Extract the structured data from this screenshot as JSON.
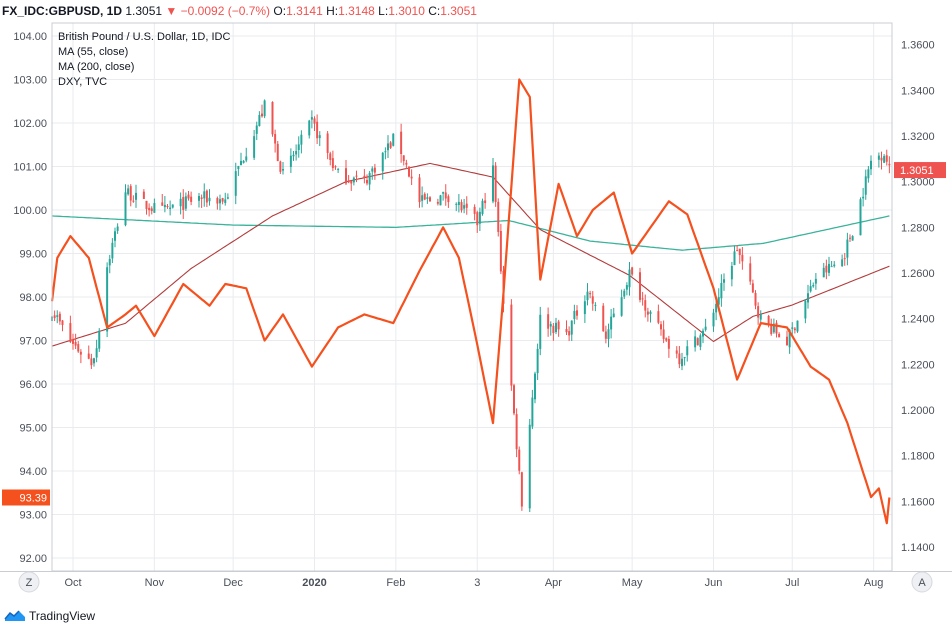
{
  "header": {
    "symbol": "FX_IDC:GBPUSD, 1D",
    "last": "1.3051",
    "arrow": "▼",
    "change": "−0.0092 (−0.7%)",
    "o_label": "O:",
    "o_value": "1.3141",
    "h_label": "H:",
    "h_value": "1.3148",
    "l_label": "L:",
    "l_value": "1.3010",
    "c_label": "C:",
    "c_value": "1.3051"
  },
  "legend": {
    "title": "British Pound / U.S. Dollar, 1D, IDC",
    "ma55": "MA (55, close)",
    "ma200": "MA (200, close)",
    "dxy": "DXY, TVC"
  },
  "footer": {
    "brand": "TradingView"
  },
  "colors": {
    "up": "#26a69a",
    "down": "#ef5350",
    "dxy": "#f4511e",
    "ma55": "#b23b3b",
    "ma200": "#3bb39b",
    "grid": "#e9ebef",
    "axis_text": "#4a4f5a"
  },
  "chart_data": {
    "type": "candlestick",
    "left_axis": {
      "label": "DXY",
      "ticks": [
        "104.00",
        "103.00",
        "102.00",
        "101.00",
        "100.00",
        "99.00",
        "98.00",
        "97.00",
        "96.00",
        "95.00",
        "94.00",
        "93.00",
        "92.00"
      ],
      "range": [
        91.7,
        104.3
      ]
    },
    "right_axis": {
      "label": "GBPUSD",
      "ticks": [
        "1.3600",
        "1.3400",
        "1.3200",
        "1.3000",
        "1.2800",
        "1.2600",
        "1.2400",
        "1.2200",
        "1.2000",
        "1.1800",
        "1.1600",
        "1.1400"
      ],
      "range": [
        1.1295,
        1.3695
      ]
    },
    "x_labels": [
      "Oct",
      "Nov",
      "Dec",
      "2020",
      "Feb",
      "3",
      "Apr",
      "May",
      "Jun",
      "Jul",
      "Aug"
    ],
    "x_dates": [
      "2019-10-01",
      "2019-11-01",
      "2019-12-01",
      "2020-01-01",
      "2020-02-01",
      "2020-03-03",
      "2020-04-01",
      "2020-05-01",
      "2020-06-01",
      "2020-07-01",
      "2020-08-01"
    ],
    "x_range": [
      "2019-09-23",
      "2020-08-08"
    ],
    "current_gbpusd": "1.3051",
    "current_dxy": "93.39",
    "gbpusd_close_anchors": [
      [
        "2019-09-23",
        1.244
      ],
      [
        "2019-09-30",
        1.23
      ],
      [
        "2019-10-08",
        1.221
      ],
      [
        "2019-10-10",
        1.228
      ],
      [
        "2019-10-14",
        1.263
      ],
      [
        "2019-10-21",
        1.296
      ],
      [
        "2019-10-28",
        1.29
      ],
      [
        "2019-11-04",
        1.287
      ],
      [
        "2019-11-18",
        1.293
      ],
      [
        "2019-11-28",
        1.292
      ],
      [
        "2019-12-06",
        1.314
      ],
      [
        "2019-12-13",
        1.333
      ],
      [
        "2019-12-20",
        1.303
      ],
      [
        "2019-12-31",
        1.326
      ],
      [
        "2020-01-10",
        1.303
      ],
      [
        "2020-01-20",
        1.3
      ],
      [
        "2020-02-01",
        1.32
      ],
      [
        "2020-02-10",
        1.291
      ],
      [
        "2020-02-21",
        1.294
      ],
      [
        "2020-03-03",
        1.282
      ],
      [
        "2020-03-09",
        1.305
      ],
      [
        "2020-03-13",
        1.248
      ],
      [
        "2020-03-20",
        1.16
      ],
      [
        "2020-03-27",
        1.24
      ],
      [
        "2020-04-06",
        1.233
      ],
      [
        "2020-04-14",
        1.253
      ],
      [
        "2020-04-21",
        1.232
      ],
      [
        "2020-04-30",
        1.26
      ],
      [
        "2020-05-12",
        1.233
      ],
      [
        "2020-05-19",
        1.223
      ],
      [
        "2020-05-29",
        1.235
      ],
      [
        "2020-06-10",
        1.271
      ],
      [
        "2020-06-19",
        1.24
      ],
      [
        "2020-06-29",
        1.23
      ],
      [
        "2020-07-10",
        1.258
      ],
      [
        "2020-07-20",
        1.266
      ],
      [
        "2020-07-24",
        1.279
      ],
      [
        "2020-07-31",
        1.309
      ],
      [
        "2020-08-05",
        1.313
      ],
      [
        "2020-08-07",
        1.3051
      ]
    ],
    "ma55_anchors": [
      [
        "2019-09-23",
        1.228
      ],
      [
        "2019-10-21",
        1.238
      ],
      [
        "2019-11-15",
        1.262
      ],
      [
        "2019-12-16",
        1.285
      ],
      [
        "2020-01-13",
        1.3
      ],
      [
        "2020-02-14",
        1.308
      ],
      [
        "2020-03-09",
        1.302
      ],
      [
        "2020-03-27",
        1.279
      ],
      [
        "2020-04-30",
        1.259
      ],
      [
        "2020-06-01",
        1.23
      ],
      [
        "2020-06-16",
        1.241
      ],
      [
        "2020-07-01",
        1.246
      ],
      [
        "2020-08-07",
        1.263
      ]
    ],
    "ma200_anchors": [
      [
        "2019-09-23",
        1.285
      ],
      [
        "2019-12-01",
        1.281
      ],
      [
        "2020-02-01",
        1.28
      ],
      [
        "2020-03-15",
        1.283
      ],
      [
        "2020-04-15",
        1.274
      ],
      [
        "2020-05-20",
        1.27
      ],
      [
        "2020-06-20",
        1.273
      ],
      [
        "2020-08-07",
        1.285
      ]
    ],
    "dxy_anchors": [
      [
        "2019-09-23",
        97.9
      ],
      [
        "2019-09-25",
        98.9
      ],
      [
        "2019-09-30",
        99.4
      ],
      [
        "2019-10-07",
        98.9
      ],
      [
        "2019-10-14",
        97.3
      ],
      [
        "2019-10-21",
        97.6
      ],
      [
        "2019-10-25",
        97.8
      ],
      [
        "2019-11-01",
        97.1
      ],
      [
        "2019-11-12",
        98.3
      ],
      [
        "2019-11-22",
        97.8
      ],
      [
        "2019-11-28",
        98.3
      ],
      [
        "2019-12-06",
        98.2
      ],
      [
        "2019-12-13",
        97.0
      ],
      [
        "2019-12-20",
        97.6
      ],
      [
        "2019-12-31",
        96.4
      ],
      [
        "2020-01-10",
        97.3
      ],
      [
        "2020-01-20",
        97.6
      ],
      [
        "2020-01-31",
        97.4
      ],
      [
        "2020-02-10",
        98.6
      ],
      [
        "2020-02-19",
        99.6
      ],
      [
        "2020-02-25",
        98.9
      ],
      [
        "2020-03-02",
        97.2
      ],
      [
        "2020-03-09",
        95.1
      ],
      [
        "2020-03-13",
        98.1
      ],
      [
        "2020-03-19",
        103.0
      ],
      [
        "2020-03-23",
        102.6
      ],
      [
        "2020-03-27",
        98.4
      ],
      [
        "2020-04-03",
        100.6
      ],
      [
        "2020-04-10",
        99.4
      ],
      [
        "2020-04-16",
        100.0
      ],
      [
        "2020-04-24",
        100.4
      ],
      [
        "2020-05-01",
        99.0
      ],
      [
        "2020-05-08",
        99.6
      ],
      [
        "2020-05-15",
        100.2
      ],
      [
        "2020-05-22",
        99.9
      ],
      [
        "2020-06-01",
        98.2
      ],
      [
        "2020-06-10",
        96.1
      ],
      [
        "2020-06-19",
        97.4
      ],
      [
        "2020-06-29",
        97.3
      ],
      [
        "2020-07-08",
        96.4
      ],
      [
        "2020-07-15",
        96.1
      ],
      [
        "2020-07-22",
        95.1
      ],
      [
        "2020-07-31",
        93.4
      ],
      [
        "2020-08-03",
        93.6
      ],
      [
        "2020-08-06",
        92.8
      ],
      [
        "2020-08-07",
        93.39
      ]
    ]
  }
}
